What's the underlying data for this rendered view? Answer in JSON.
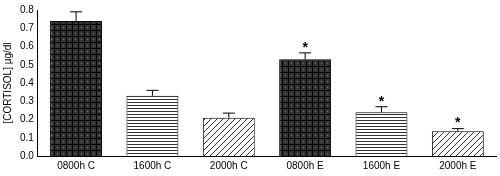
{
  "chart_data": {
    "type": "bar",
    "y_label": "[CORTISOL] µg/dl",
    "categories": [
      "0800h C",
      "1600h C",
      "2000h C",
      "0800h E",
      "1600h E",
      "2000h E"
    ],
    "values": [
      0.74,
      0.33,
      0.21,
      0.53,
      0.24,
      0.135
    ],
    "errors": [
      0.05,
      0.03,
      0.025,
      0.035,
      0.03,
      0.015
    ],
    "color": "#333333",
    "ylim": [
      0,
      0.8
    ],
    "yticks": [
      {
        "value": 0,
        "label": "0.0"
      },
      0.1,
      0.2,
      0.3,
      0.4,
      0.5,
      0.6,
      0.7,
      0.8
    ],
    "grid": false,
    "annotations": [
      {
        "category": "0800h E",
        "text": "*"
      },
      {
        "category": "1600h E",
        "text": "*"
      },
      {
        "category": "2000h E",
        "text": "*"
      }
    ]
  }
}
